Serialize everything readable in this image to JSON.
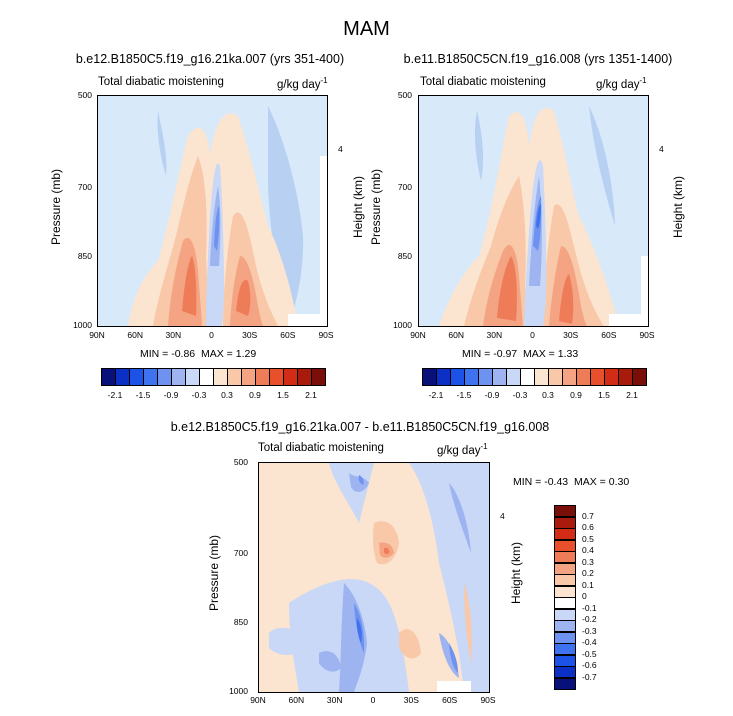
{
  "figure_title": "MAM",
  "colors": {
    "scale": [
      "#08107a",
      "#0c30c6",
      "#1c52e6",
      "#3f72ee",
      "#6e92f0",
      "#9db4f0",
      "#c8d8f6",
      "#ffffff",
      "#fbe4d0",
      "#f9c8a8",
      "#f4a482",
      "#ee7c58",
      "#e8502c",
      "#d22b16",
      "#a81a0c",
      "#7a0e08"
    ],
    "background_light_blue": "#d8e9fa"
  },
  "top_left": {
    "title": "b.e12.B1850C5.f19_g16.21ka.007 (yrs 351-400)",
    "subtitle_left": "Total diabatic moistening",
    "units": "g/kg day",
    "units_exp": "-1",
    "ylabel": "Pressure (mb)",
    "rlabel": "Height (km)",
    "height_tick": "4",
    "min_label": "MIN =",
    "min_value": "-0.86",
    "max_label": "MAX =",
    "max_value": "1.29"
  },
  "top_right": {
    "title": "b.e11.B1850C5CN.f19_g16.008 (yrs 1351-1400)",
    "subtitle_left": "Total diabatic moistening",
    "units": "g/kg day",
    "units_exp": "-1",
    "ylabel": "Pressure (mb)",
    "rlabel": "Height (km)",
    "height_tick": "4",
    "min_label": "MIN =",
    "min_value": "-0.97",
    "max_label": "MAX =",
    "max_value": "1.33"
  },
  "bottom": {
    "title": "b.e12.B1850C5.f19_g16.21ka.007 - b.e11.B1850C5CN.f19_g16.008",
    "subtitle_left": "Total diabatic moistening",
    "units": "g/kg day",
    "units_exp": "-1",
    "ylabel": "Pressure (mb)",
    "rlabel": "Height (km)",
    "height_tick": "4",
    "min_label": "MIN =",
    "min_value": "-0.43",
    "max_label": "MAX =",
    "max_value": "0.30"
  },
  "chart_data": [
    {
      "type": "heatmap",
      "title": "b.e12.B1850C5.f19_g16.21ka.007 (yrs 351-400)",
      "xlabel": "",
      "ylabel": "Pressure (mb)",
      "x_ticks": [
        "90N",
        "60N",
        "30N",
        "0",
        "30S",
        "60S",
        "90S"
      ],
      "y_ticks": [
        "500",
        "700",
        "850",
        "1000"
      ],
      "ylim": [
        1000,
        500
      ],
      "min": -0.86,
      "max": 1.29,
      "colorbar_labels": [
        "-2.1",
        "-1.5",
        "-0.9",
        "-0.3",
        "0.3",
        "0.9",
        "1.5",
        "2.1"
      ]
    },
    {
      "type": "heatmap",
      "title": "b.e11.B1850C5CN.f19_g16.008 (yrs 1351-1400)",
      "xlabel": "",
      "ylabel": "Pressure (mb)",
      "x_ticks": [
        "90N",
        "60N",
        "30N",
        "0",
        "30S",
        "60S",
        "90S"
      ],
      "y_ticks": [
        "500",
        "700",
        "850",
        "1000"
      ],
      "ylim": [
        1000,
        500
      ],
      "min": -0.97,
      "max": 1.33,
      "colorbar_labels": [
        "-2.1",
        "-1.5",
        "-0.9",
        "-0.3",
        "0.3",
        "0.9",
        "1.5",
        "2.1"
      ]
    },
    {
      "type": "heatmap",
      "title": "b.e12.B1850C5.f19_g16.21ka.007 - b.e11.B1850C5CN.f19_g16.008",
      "xlabel": "",
      "ylabel": "Pressure (mb)",
      "x_ticks": [
        "90N",
        "60N",
        "30N",
        "0",
        "30S",
        "60S",
        "90S"
      ],
      "y_ticks": [
        "500",
        "700",
        "850",
        "1000"
      ],
      "ylim": [
        1000,
        500
      ],
      "min": -0.43,
      "max": 0.3,
      "colorbar_labels": [
        "0.7",
        "0.6",
        "0.5",
        "0.4",
        "0.3",
        "0.2",
        "0.1",
        "0",
        "-0.1",
        "-0.2",
        "-0.3",
        "-0.4",
        "-0.5",
        "-0.6",
        "-0.7"
      ]
    }
  ]
}
